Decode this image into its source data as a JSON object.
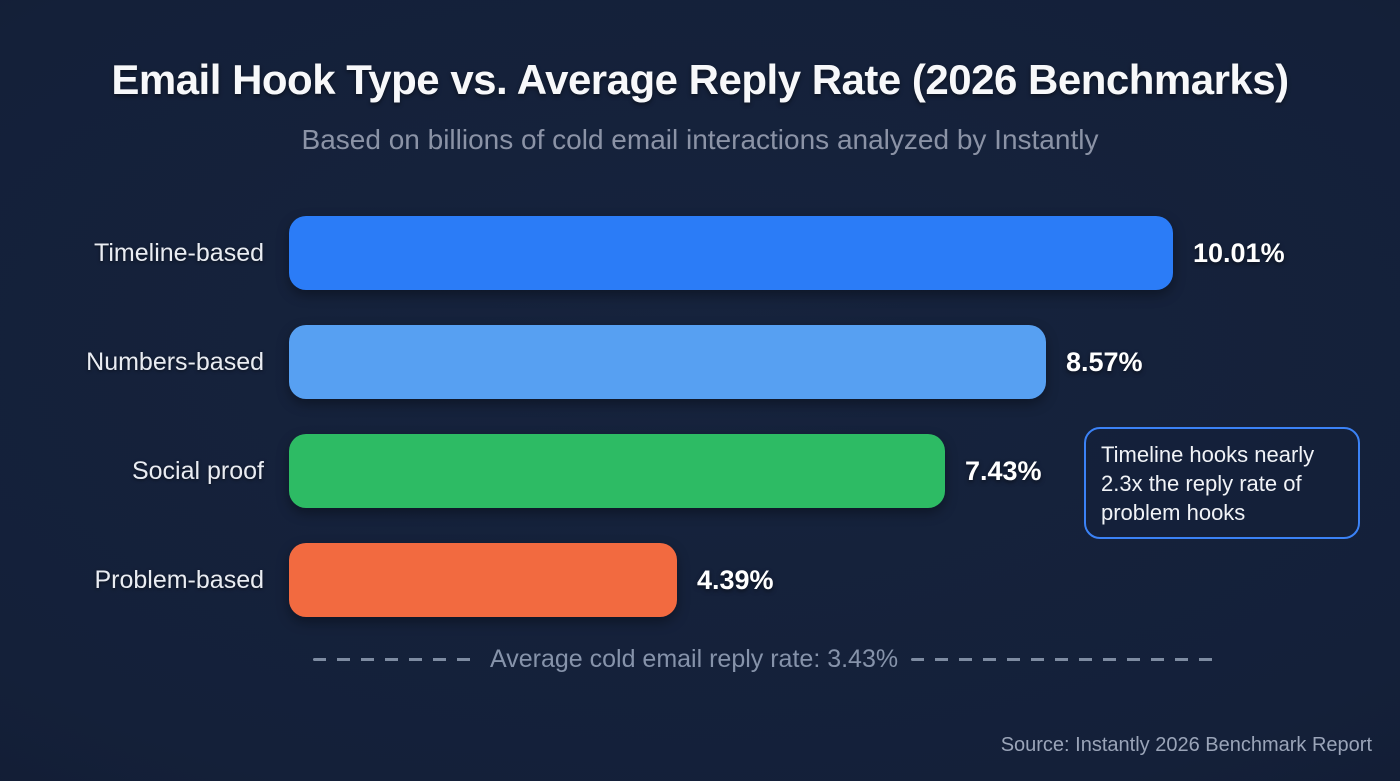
{
  "title": "Email Hook Type vs. Average Reply Rate (2026 Benchmarks)",
  "subtitle": "Based on billions of cold email interactions analyzed by Instantly",
  "chart_data": {
    "type": "bar",
    "orientation": "horizontal",
    "title": "Email Hook Type vs. Average Reply Rate (2026 Benchmarks)",
    "subtitle": "Based on billions of cold email interactions analyzed by Instantly",
    "categories": [
      "Timeline-based",
      "Numbers-based",
      "Social proof",
      "Problem-based"
    ],
    "values": [
      10.01,
      8.57,
      7.43,
      4.39
    ],
    "value_labels": [
      "10.01%",
      "8.57%",
      "7.43%",
      "4.39%"
    ],
    "bar_colors": [
      "#2b7cf7",
      "#57a0f2",
      "#2dbb64",
      "#f26a40"
    ],
    "xlim": [
      0,
      10.01
    ],
    "grid": false,
    "legend": "none",
    "reference_line": {
      "value": 3.43,
      "label": "Average cold email reply rate: 3.43%",
      "style": "dashed"
    },
    "annotation": {
      "text": "Timeline hooks nearly 2.3x the reply rate of problem hooks",
      "border_color": "#3b82f6"
    }
  },
  "average_note": {
    "label": "Average cold email reply rate: 3.43%"
  },
  "annotation_box": {
    "text": "Timeline hooks nearly 2.3x the reply rate of problem hooks"
  },
  "source": "Source: Instantly 2026 Benchmark Report",
  "colors": {
    "background": "#142039",
    "title_text": "#f7f8fa",
    "subtitle_text": "#8b93a6",
    "label_text": "#e9ecf2",
    "value_text": "#ffffff",
    "avg_text": "#8693aa",
    "annotation_border": "#3b82f6",
    "source_text": "#9aa4b8"
  }
}
